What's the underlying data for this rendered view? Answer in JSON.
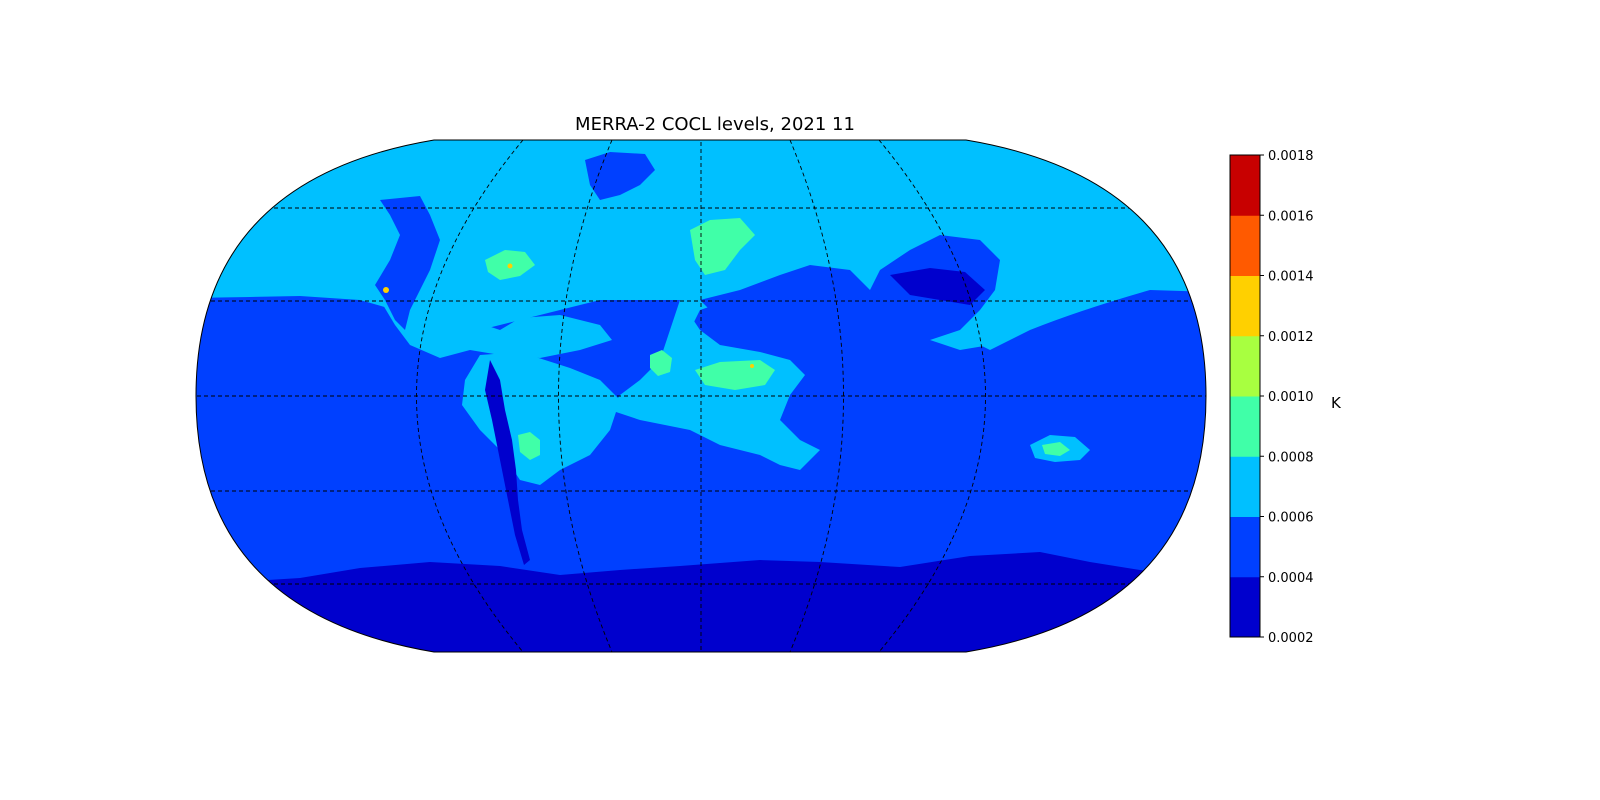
{
  "title": "MERRA-2 COCL levels, 2021 11",
  "projection": "Robinson",
  "colorbar": {
    "label": "K",
    "ticks": [
      "0.0002",
      "0.0004",
      "0.0006",
      "0.0008",
      "0.0010",
      "0.0012",
      "0.0014",
      "0.0016",
      "0.0018"
    ],
    "colors": [
      "#0000cd",
      "#0040ff",
      "#00c0ff",
      "#40ffa8",
      "#a8ff40",
      "#ffd000",
      "#ff5a00",
      "#c80000"
    ]
  },
  "map": {
    "background_level_colors": {
      "southern_polar_band": "#0000cd",
      "southern_and_tropical_ocean": "#0040ff",
      "northern_high_latitudes": "#00c0ff"
    },
    "graticule": "dashed"
  }
}
